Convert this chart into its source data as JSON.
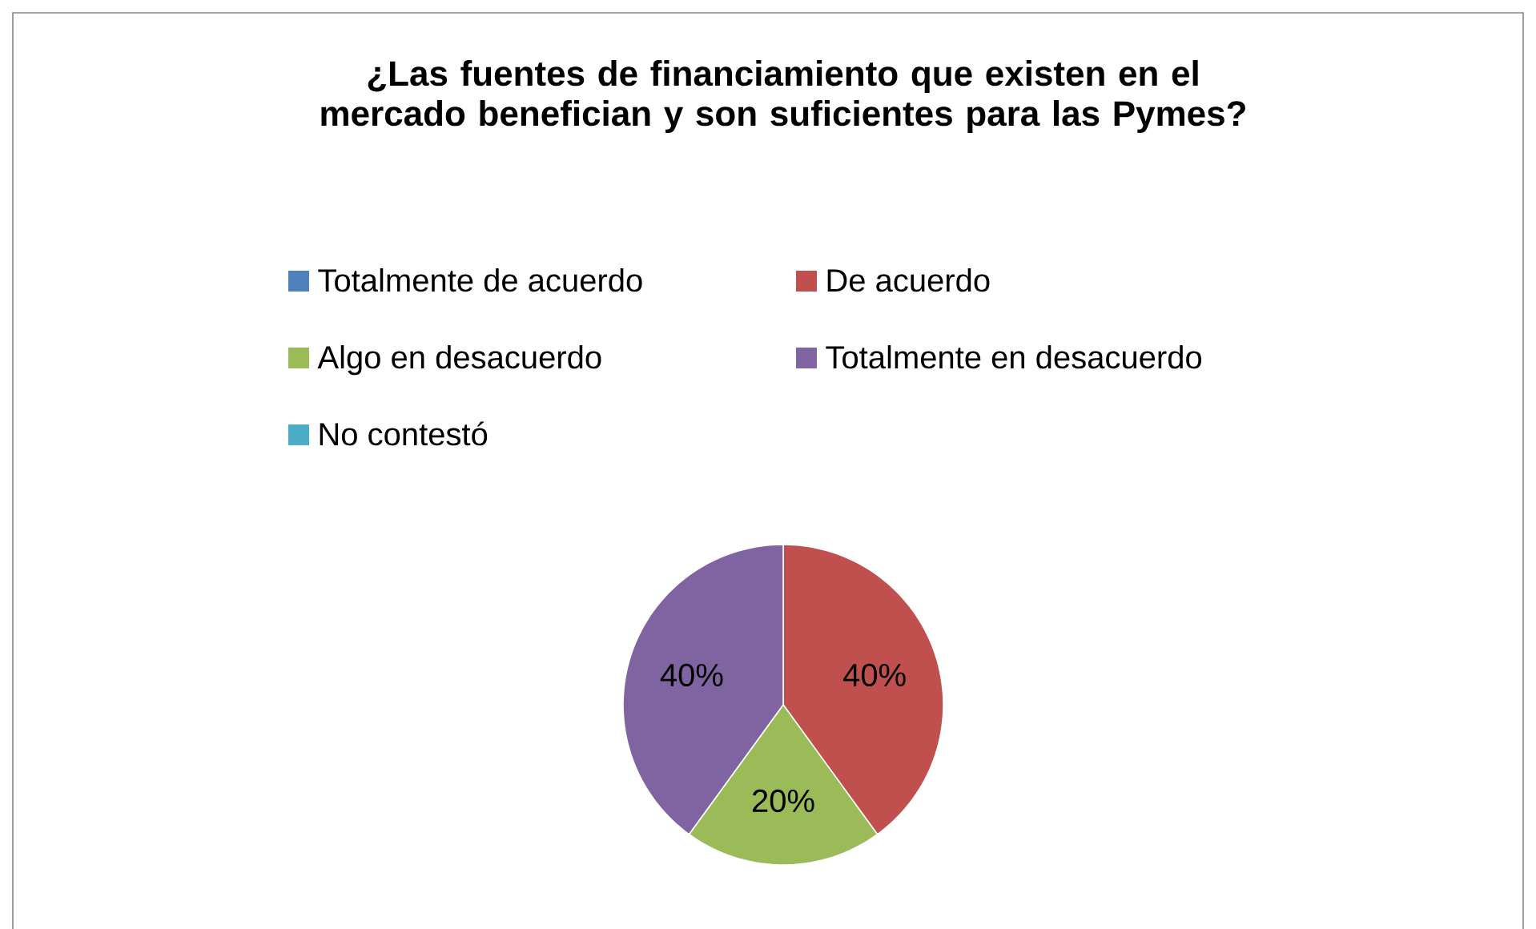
{
  "chart_data": {
    "type": "pie",
    "title": "¿Las fuentes de financiamiento que existen en el mercado benefician y son suficientes para las Pymes?",
    "categories": [
      "Totalmente de acuerdo",
      "De acuerdo",
      "Algo en desacuerdo",
      "Totalmente en desacuerdo",
      "No contestó"
    ],
    "values": [
      0,
      40,
      20,
      40,
      0
    ],
    "colors": [
      "#4f81bd",
      "#c0504d",
      "#9bbb59",
      "#8064a2",
      "#4bacc6"
    ],
    "value_labels": [
      null,
      "40%",
      "20%",
      "40%",
      null
    ],
    "legend": "top"
  }
}
